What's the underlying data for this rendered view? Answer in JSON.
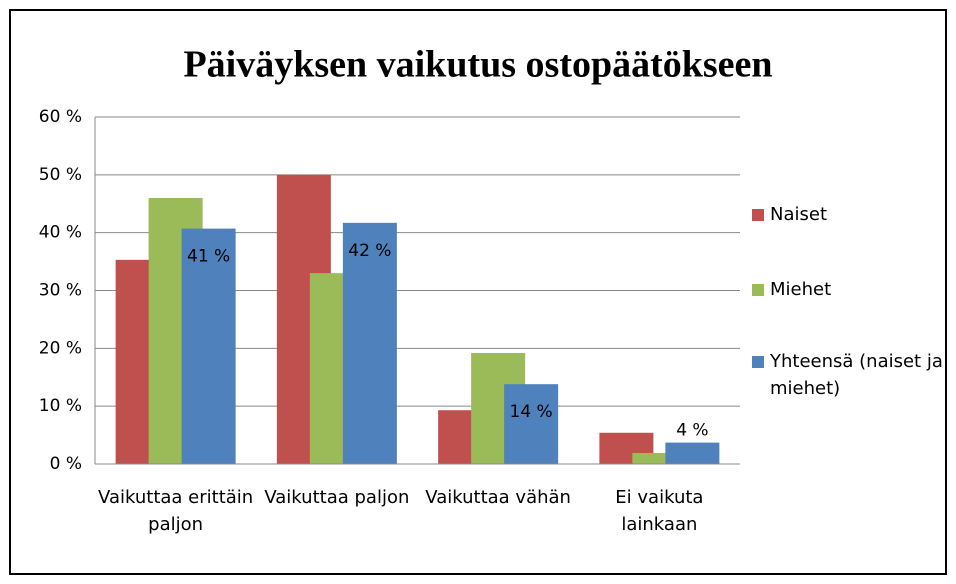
{
  "chart_data": {
    "type": "bar",
    "title": "Päiväyksen vaikutus ostopäätökseen",
    "categories": [
      "Vaikuttaa erittäin paljon",
      "Vaikuttaa paljon",
      "Vaikuttaa vähän",
      "Ei vaikuta lainkaan"
    ],
    "series": [
      {
        "name": "Naiset",
        "color": "#c0504d",
        "values": [
          35.3,
          50,
          9.3,
          5.4
        ]
      },
      {
        "name": "Miehet",
        "color": "#9bbb59",
        "values": [
          46,
          33,
          19.2,
          1.9
        ]
      },
      {
        "name": "Yhteensä (naiset ja miehet)",
        "color": "#4f81bd",
        "values": [
          40.7,
          41.7,
          13.8,
          3.7
        ],
        "value_labels": [
          "41 %",
          "42 %",
          "14 %",
          "4 %"
        ]
      }
    ],
    "ylim": [
      0,
      60
    ],
    "yticks": [
      {
        "value": 0,
        "label": "0 %"
      },
      {
        "value": 10,
        "label": "10 %"
      },
      {
        "value": 20,
        "label": "20 %"
      },
      {
        "value": 30,
        "label": "30 %"
      },
      {
        "value": 40,
        "label": "40 %"
      },
      {
        "value": 50,
        "label": "50 %"
      },
      {
        "value": 60,
        "label": "60 %"
      }
    ],
    "grid": true,
    "legend": "right"
  }
}
